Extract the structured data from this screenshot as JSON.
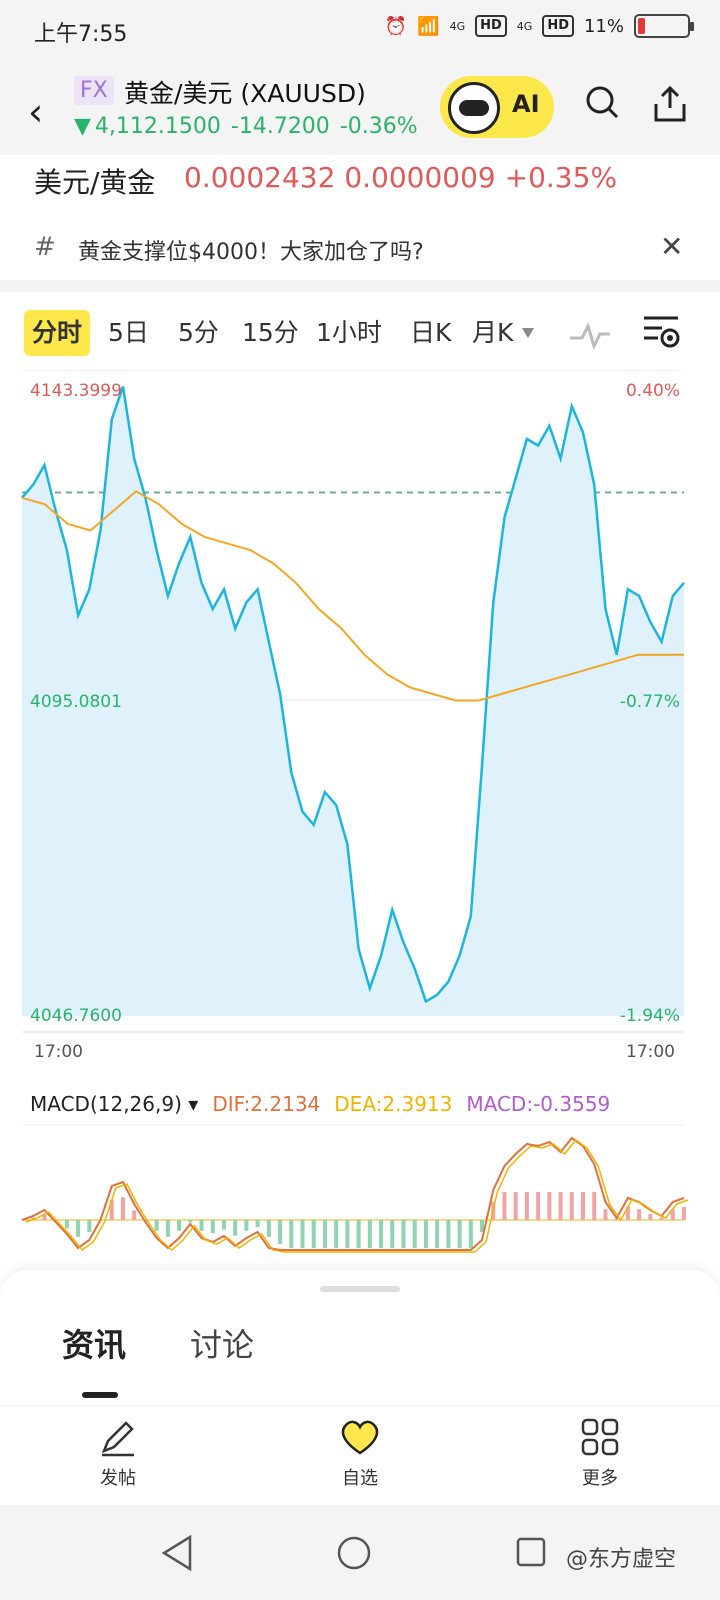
{
  "status": {
    "time": "上午7:55",
    "net1": "4G",
    "net2": "4G",
    "hd": "HD",
    "battery": "11%"
  },
  "header": {
    "badge": "FX",
    "title": "黄金/美元 (XAUUSD)",
    "arrow": "▼",
    "price": "4,112.1500",
    "change": "-14.7200",
    "change_pct": "-0.36%",
    "ai_label": "AI"
  },
  "convert": {
    "label": "美元/黄金",
    "value": "0.0002432 0.0000009 +0.35%"
  },
  "news": {
    "hash": "#",
    "text": "黄金支撑位$4000！大家加仓了吗?"
  },
  "tabs": [
    "分时",
    "5日",
    "5分",
    "15分",
    "1小时",
    "日K",
    "月K"
  ],
  "chart_data": {
    "type": "line",
    "y_labels_left": [
      "4143.3999",
      "4095.0801",
      "4046.7600"
    ],
    "y_labels_right": [
      "0.40%",
      "-0.77%",
      "-1.94%"
    ],
    "x_labels": [
      "17:00",
      "17:00"
    ],
    "reference_price": 4126.87,
    "series": [
      {
        "values": [
          4126,
          4128,
          4131,
          4124,
          4118,
          4108,
          4112,
          4121,
          4138,
          4143,
          4132,
          4126,
          4118,
          4111,
          4116,
          4120,
          4113,
          4109,
          4112,
          4106,
          4110,
          4112,
          4104,
          4096,
          4084,
          4078,
          4076,
          4081,
          4079,
          4073,
          4057,
          4051,
          4056,
          4063,
          4058,
          4054,
          4049,
          4050,
          4052,
          4056,
          4062,
          4085,
          4110,
          4123,
          4129,
          4135,
          4134,
          4137,
          4132,
          4140,
          4136,
          4128,
          4109,
          4102,
          4112,
          4111,
          4107,
          4104,
          4111,
          4113
        ]
      },
      {
        "values": [
          4126,
          4125,
          4122,
          4121,
          4124,
          4127,
          4125,
          4122,
          4120,
          4119,
          4118,
          4116,
          4113,
          4109,
          4106,
          4102,
          4099,
          4097,
          4096,
          4095,
          4095,
          4096,
          4097,
          4098,
          4099,
          4100,
          4101,
          4102,
          4102,
          4102
        ]
      }
    ]
  },
  "macd": {
    "label": "MACD(12,26,9)",
    "dif": "DIF:2.2134",
    "dea": "DEA:2.3913",
    "macd": "MACD:-0.3559"
  },
  "info_tabs": [
    "资讯",
    "讨论"
  ],
  "nav": [
    {
      "label": "发帖",
      "icon": "pen-icon"
    },
    {
      "label": "自选",
      "icon": "heart-icon"
    },
    {
      "label": "更多",
      "icon": "grid-icon"
    }
  ],
  "watermark": "@东方虚空",
  "colors": {
    "up": "#e05a5a",
    "down": "#29b36a",
    "line": "#1cb5e0",
    "avg": "#f5a623",
    "accent": "#fde84b"
  }
}
